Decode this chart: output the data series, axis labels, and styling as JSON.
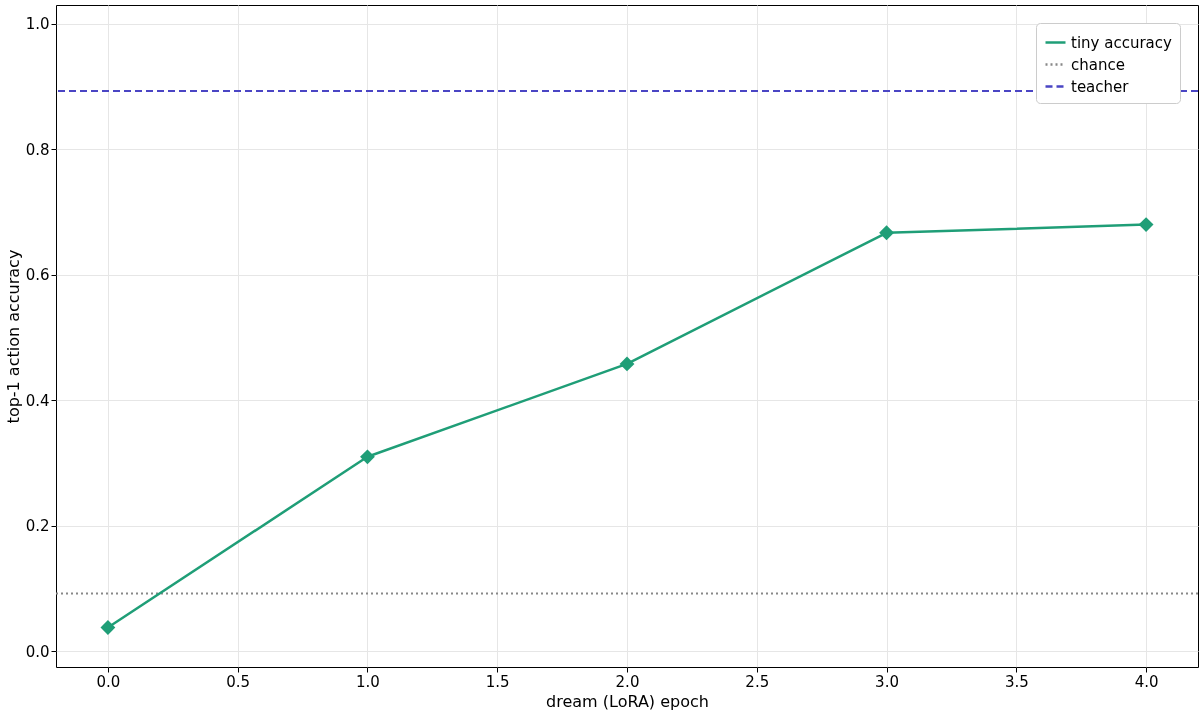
{
  "chart_data": {
    "type": "line",
    "xlabel": "dream (LoRA) epoch",
    "ylabel": "top-1 action accuracy",
    "x": [
      0,
      1,
      2,
      3,
      4
    ],
    "series": [
      {
        "name": "tiny accuracy",
        "color": "#1f9e77",
        "values": [
          0.038,
          0.31,
          0.458,
          0.667,
          0.68
        ]
      }
    ],
    "ref_lines": [
      {
        "axis": "y",
        "value": 0.092,
        "label": "chance",
        "color": "#888888",
        "line_style": "dotted"
      },
      {
        "axis": "y",
        "value": 0.893,
        "label": "teacher",
        "color": "#4a45c4",
        "line_style": "dashed"
      }
    ],
    "xlim": [
      -0.2,
      4.2
    ],
    "ylim": [
      -0.025,
      1.03
    ],
    "xticks": [
      {
        "value": 0,
        "label": "0.0"
      },
      {
        "value": 0.5,
        "label": "0.5"
      },
      {
        "value": 1,
        "label": "1.0"
      },
      {
        "value": 1.5,
        "label": "1.5"
      },
      {
        "value": 2,
        "label": "2.0"
      },
      {
        "value": 2.5,
        "label": "2.5"
      },
      {
        "value": 3,
        "label": "3.0"
      },
      {
        "value": 3.5,
        "label": "3.5"
      },
      {
        "value": 4,
        "label": "4.0"
      }
    ],
    "yticks": [
      {
        "value": 0,
        "label": "0.0"
      },
      {
        "value": 0.2,
        "label": "0.2"
      },
      {
        "value": 0.4,
        "label": "0.4"
      },
      {
        "value": 0.6,
        "label": "0.6"
      },
      {
        "value": 0.8,
        "label": "0.8"
      },
      {
        "value": 1,
        "label": "1.0"
      }
    ],
    "grid": true,
    "legend": "top right",
    "marker": "diamond",
    "line_style": "solid"
  }
}
